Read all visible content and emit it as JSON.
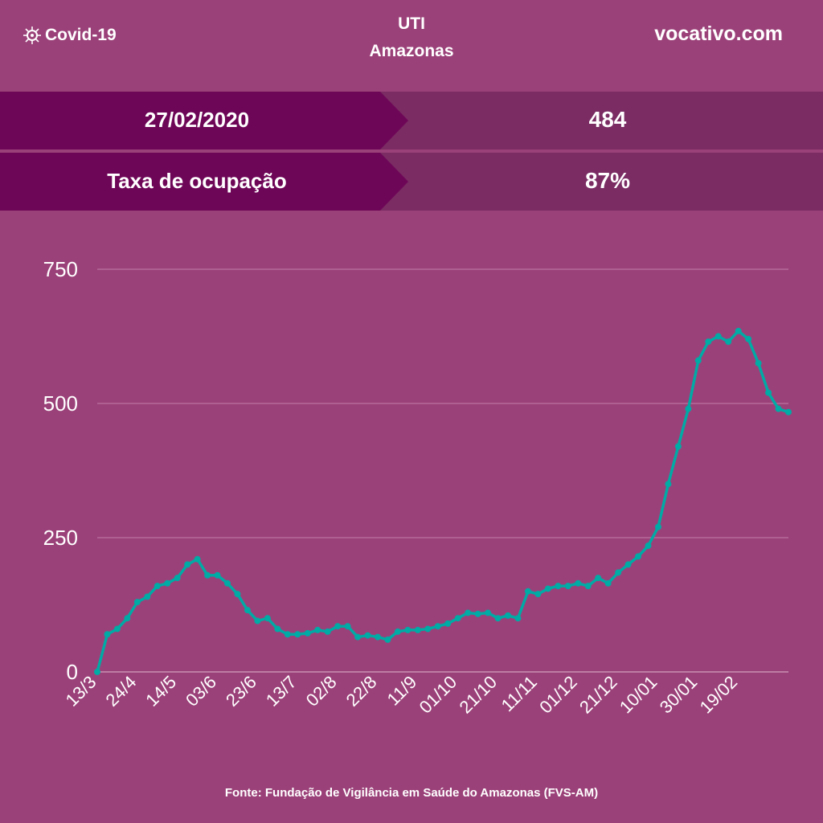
{
  "header": {
    "brand": "Covid-19",
    "brand_icon": "virus-icon",
    "title": "UTI",
    "subtitle": "Amazonas",
    "site": "vocativo.com"
  },
  "summary": [
    {
      "label": "27/02/2020",
      "value": "484"
    },
    {
      "label": "Taxa de ocupação",
      "value": "87%"
    }
  ],
  "colors": {
    "background": "#9b4179",
    "row_dark": "#6e0657",
    "row_light": "#7a2c63",
    "line": "#00aaa5"
  },
  "chart_data": {
    "type": "line",
    "title": "",
    "xlabel": "",
    "ylabel": "",
    "ylim": [
      0,
      750
    ],
    "y_ticks": [
      0,
      250,
      500,
      750
    ],
    "grid": true,
    "markers": true,
    "x_tick_labels": [
      "13/3",
      "24/4",
      "14/5",
      "03/6",
      "23/6",
      "13/7",
      "02/8",
      "22/8",
      "11/9",
      "01/10",
      "21/10",
      "11/11",
      "01/12",
      "21/12",
      "10/01",
      "30/01",
      "19/02"
    ],
    "values": [
      0,
      70,
      80,
      100,
      130,
      140,
      160,
      165,
      175,
      200,
      210,
      180,
      180,
      165,
      145,
      115,
      95,
      100,
      80,
      70,
      70,
      72,
      78,
      75,
      85,
      85,
      65,
      68,
      65,
      60,
      75,
      78,
      78,
      80,
      85,
      90,
      100,
      110,
      108,
      110,
      100,
      105,
      100,
      150,
      145,
      155,
      160,
      160,
      165,
      160,
      175,
      165,
      185,
      200,
      215,
      235,
      270,
      350,
      420,
      490,
      580,
      615,
      625,
      615,
      635,
      620,
      575,
      520,
      490,
      484
    ]
  },
  "footer": {
    "source": "Fonte: Fundação de Vigilância em Saúde do Amazonas (FVS-AM)"
  }
}
